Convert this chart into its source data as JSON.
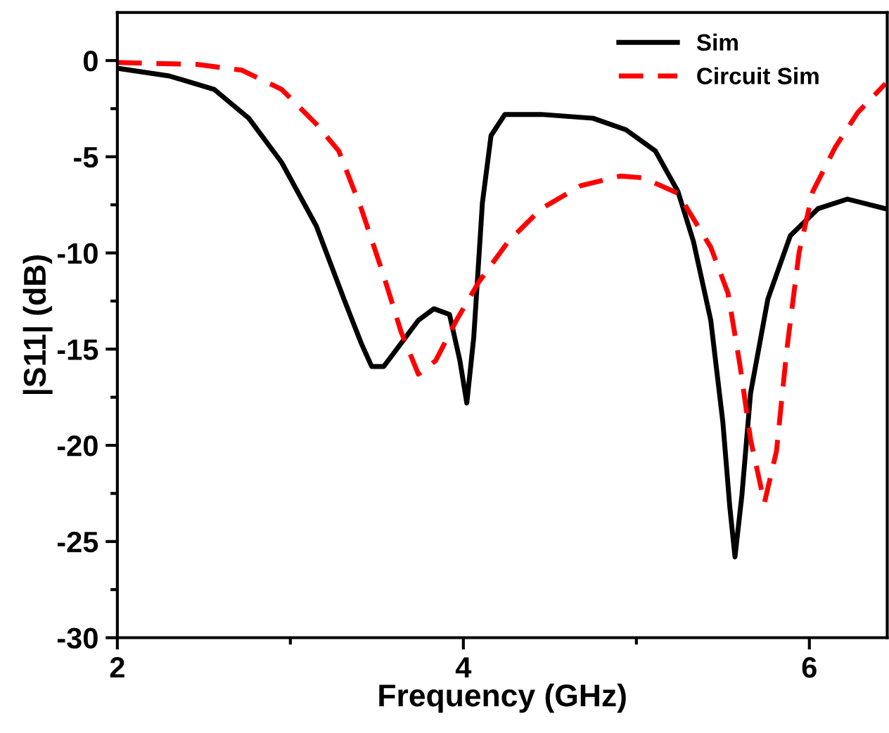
{
  "chart_data": {
    "type": "line",
    "xlabel": "Frequency (GHz)",
    "ylabel": "|S11| (dB)",
    "xlim": [
      2,
      6.45
    ],
    "ylim": [
      -30,
      2.5
    ],
    "xticks": [
      2,
      {
        "value": 3,
        "label": null
      },
      4,
      {
        "value": 5,
        "label": null
      },
      6
    ],
    "yticks": [
      0,
      {
        "value": -2.5,
        "label": null
      },
      -5,
      {
        "value": -7.5,
        "label": null
      },
      -10,
      {
        "value": -12.5,
        "label": null
      },
      -15,
      {
        "value": -17.5,
        "label": null
      },
      -20,
      {
        "value": -22.5,
        "label": null
      },
      -25,
      {
        "value": -27.5,
        "label": null
      },
      -30
    ],
    "legend": "top right",
    "grid": false,
    "series": [
      {
        "name": "Sim",
        "color": "#000000",
        "line_style": "solid",
        "x": [
          2,
          2.3,
          2.56,
          2.76,
          2.95,
          3.15,
          3.31,
          3.41,
          3.47,
          3.54,
          3.64,
          3.74,
          3.83,
          3.92,
          3.98,
          4.02,
          4.06,
          4.11,
          4.16,
          4.24,
          4.45,
          4.75,
          4.94,
          5.11,
          5.24,
          5.33,
          5.43,
          5.5,
          5.54,
          5.57,
          5.61,
          5.66,
          5.76,
          5.89,
          6.05,
          6.22,
          6.44
        ],
        "values": [
          -0.4,
          -0.8,
          -1.5,
          -3.0,
          -5.3,
          -8.6,
          -12.4,
          -14.7,
          -15.9,
          -15.9,
          -14.7,
          -13.5,
          -12.9,
          -13.2,
          -15.6,
          -17.8,
          -14.4,
          -7.4,
          -3.9,
          -2.8,
          -2.8,
          -3.0,
          -3.6,
          -4.7,
          -6.8,
          -9.4,
          -13.5,
          -18.8,
          -23.2,
          -25.8,
          -22.6,
          -17.3,
          -12.4,
          -9.1,
          -7.7,
          -7.2,
          -7.7
        ]
      },
      {
        "name": "Circuit Sim",
        "color": "#ff0000",
        "line_style": "dashed",
        "x": [
          2,
          2.46,
          2.72,
          2.95,
          3.15,
          3.28,
          3.41,
          3.54,
          3.64,
          3.74,
          3.84,
          3.96,
          4.09,
          4.26,
          4.45,
          4.68,
          4.91,
          5.04,
          5.24,
          5.43,
          5.53,
          5.6,
          5.66,
          5.74,
          5.81,
          5.87,
          5.94,
          6.02,
          6.15,
          6.28,
          6.44
        ],
        "values": [
          -0.1,
          -0.2,
          -0.5,
          -1.5,
          -3.3,
          -4.7,
          -7.7,
          -11.2,
          -14.1,
          -16.3,
          -15.6,
          -13.5,
          -11.5,
          -9.4,
          -7.7,
          -6.5,
          -6.0,
          -6.1,
          -6.9,
          -9.7,
          -12.1,
          -15.9,
          -19.7,
          -23.0,
          -20.3,
          -15.0,
          -10.0,
          -6.8,
          -4.5,
          -2.7,
          -1.2
        ]
      }
    ]
  }
}
